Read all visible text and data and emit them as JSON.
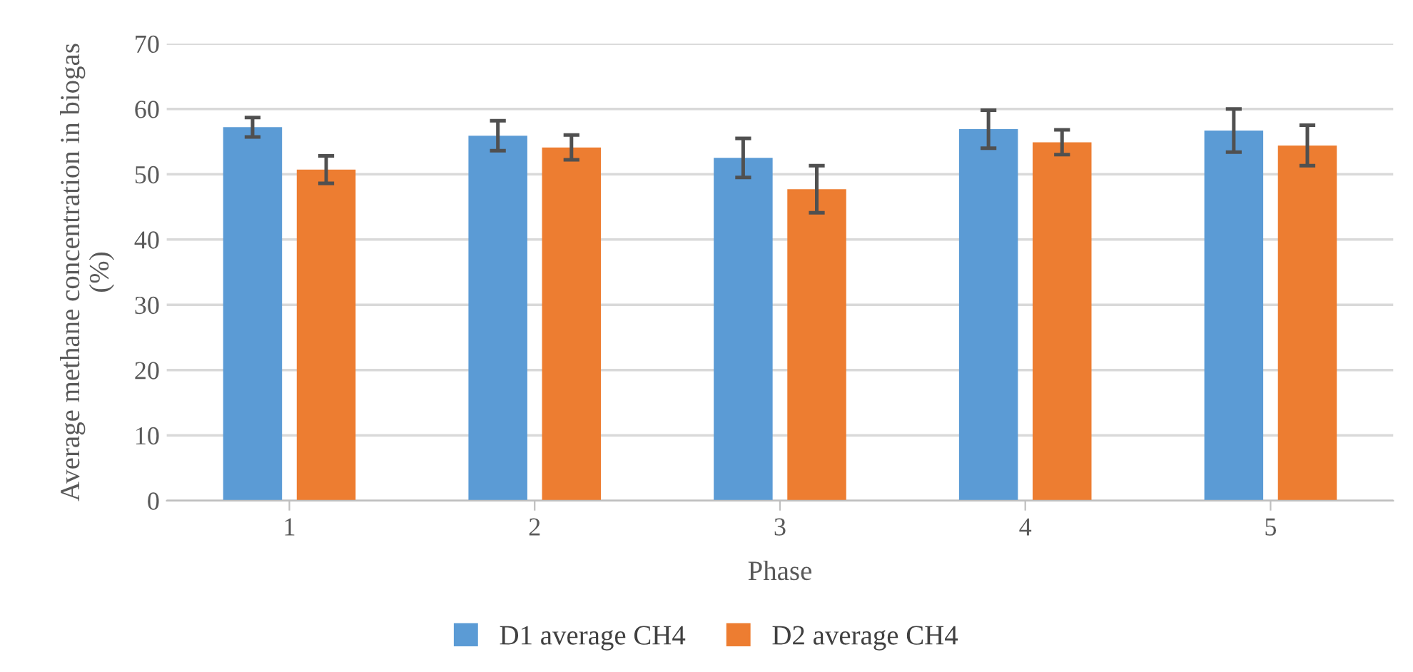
{
  "chart_data": {
    "type": "bar",
    "xlabel": "Phase",
    "ylabel": "Average methane concentration in biogas\n(%)",
    "categories": [
      "1",
      "2",
      "3",
      "4",
      "5"
    ],
    "series": [
      {
        "name": "D1 average CH4",
        "color": "#5b9bd5",
        "values": [
          57.2,
          55.9,
          52.5,
          56.9,
          56.7
        ],
        "errors": [
          1.5,
          2.3,
          3.0,
          2.9,
          3.3
        ]
      },
      {
        "name": "D2 average CH4",
        "color": "#ed7d31",
        "values": [
          50.7,
          54.1,
          47.7,
          54.9,
          54.4
        ],
        "errors": [
          2.1,
          1.9,
          3.6,
          1.9,
          3.1
        ]
      }
    ],
    "ylim": [
      0,
      70
    ],
    "yticks": [
      0,
      10,
      20,
      30,
      40,
      50,
      60,
      70
    ],
    "grid": "y",
    "legend": "bottom"
  }
}
